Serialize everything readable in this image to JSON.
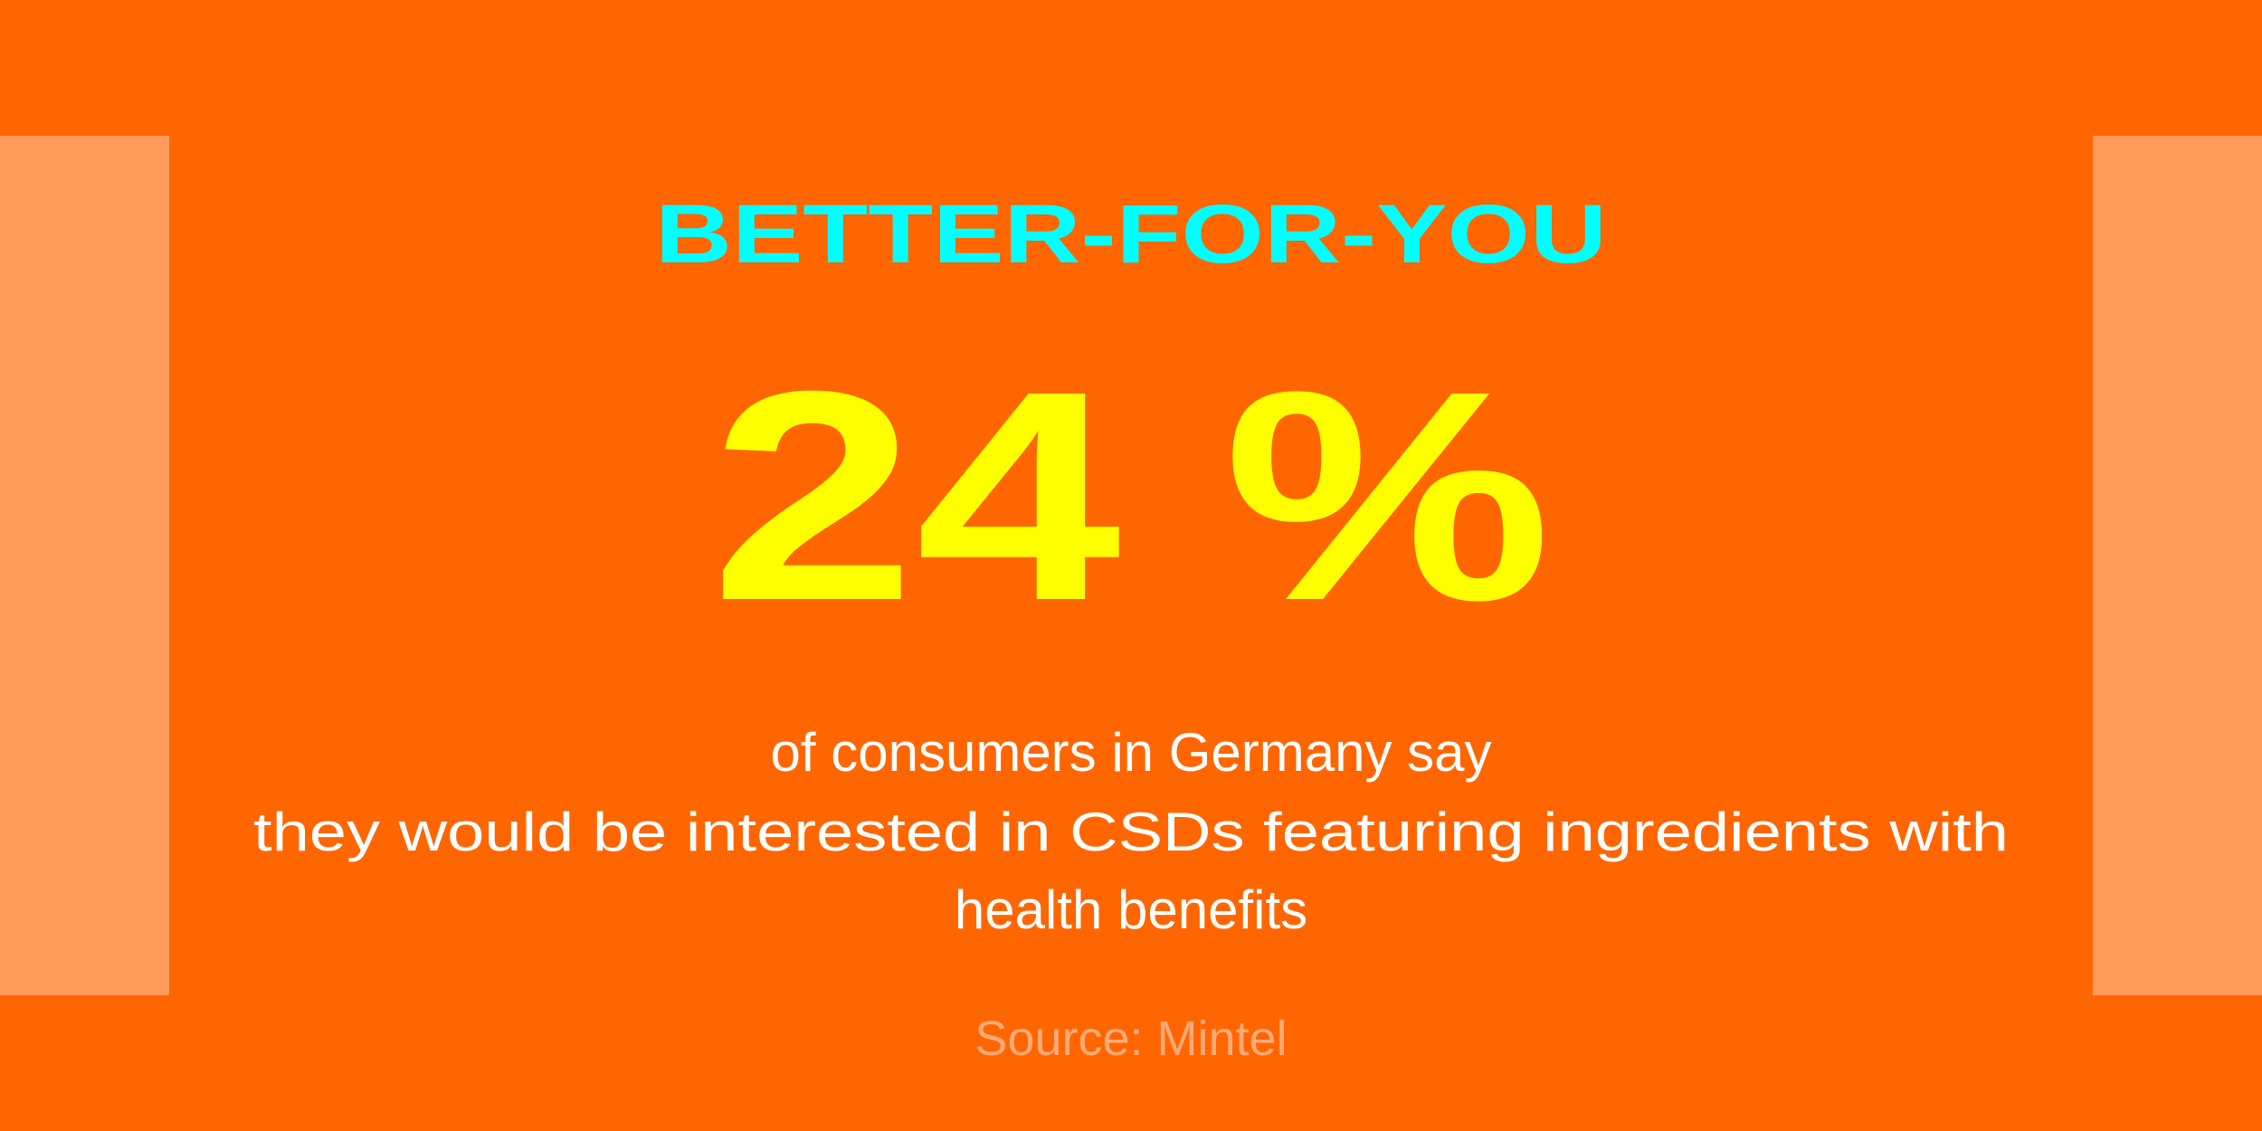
{
  "header": {
    "title": "BETTER-FOR-YOU"
  },
  "stat": "24 %",
  "description": {
    "lines": [
      "of consumers in Germany say",
      "they would be interested in CSDs featuring ingredients with",
      "health benefits"
    ]
  },
  "footer": {
    "source": "Source: Mintel"
  }
}
